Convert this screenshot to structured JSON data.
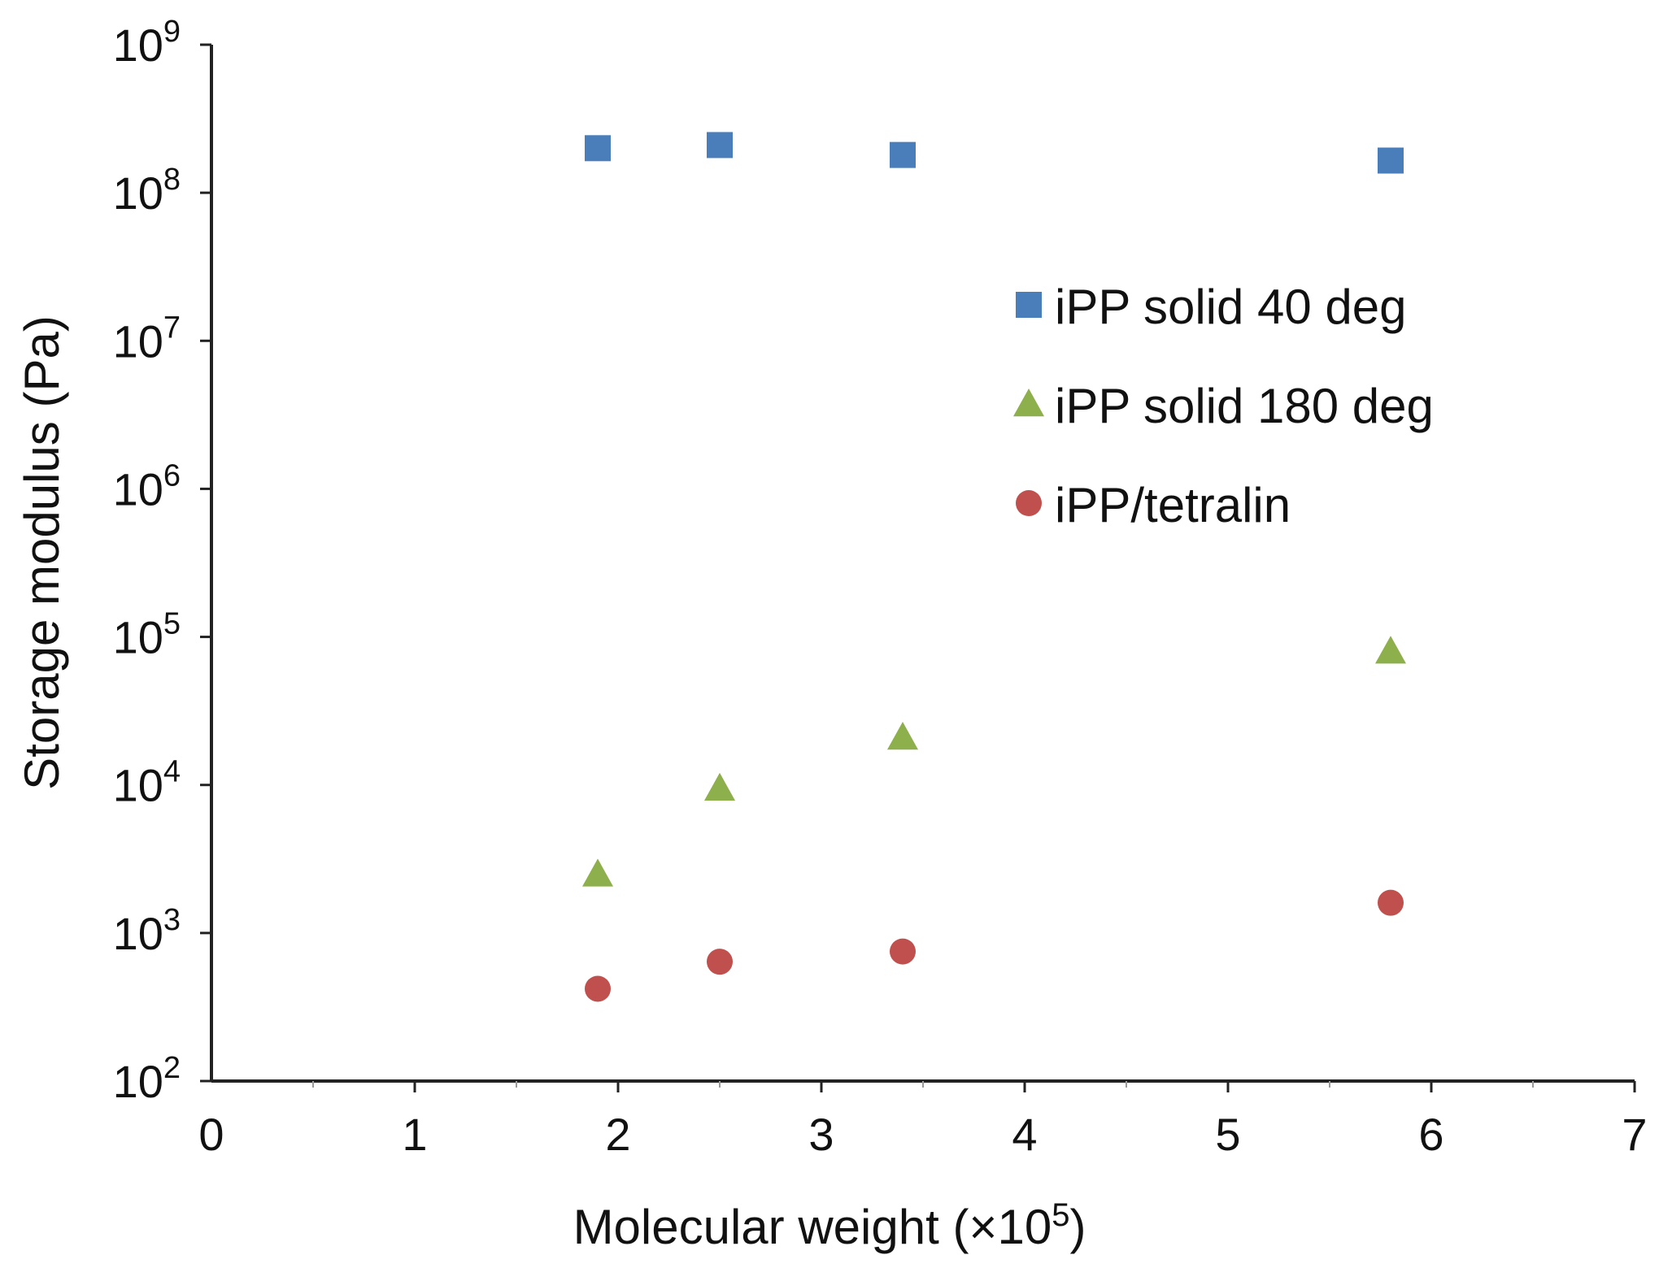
{
  "chart_data": {
    "type": "scatter",
    "title": "",
    "xlabel": "Molecular weight (×10",
    "xlabel_exponent": "5",
    "xlabel_suffix": ")",
    "ylabel": "Storage modulus (Pa)",
    "x_scale": "linear",
    "y_scale": "log",
    "xlim": [
      0,
      7
    ],
    "ylim": [
      100,
      1000000000
    ],
    "x_ticks": [
      0,
      1,
      2,
      3,
      4,
      5,
      6,
      7
    ],
    "y_tick_exponents": [
      2,
      3,
      4,
      5,
      6,
      7,
      8,
      9
    ],
    "y_tick_base": "10",
    "grid": false,
    "legend_position": "right-upper-inside",
    "series": [
      {
        "name": "iPP solid 40 deg",
        "marker": "square",
        "color": "#4A7EBB",
        "x": [
          1.9,
          2.5,
          3.4,
          5.8
        ],
        "y": [
          200000000,
          210000000,
          180000000,
          165000000
        ]
      },
      {
        "name": "iPP solid 180 deg",
        "marker": "triangle",
        "color": "#8DB04C",
        "x": [
          1.9,
          2.5,
          3.4,
          5.8
        ],
        "y": [
          2500,
          9500,
          21000,
          80000
        ]
      },
      {
        "name": "iPP/tetralin",
        "marker": "circle",
        "color": "#C0504D",
        "x": [
          1.9,
          2.5,
          3.4,
          5.8
        ],
        "y": [
          420,
          640,
          750,
          1600
        ]
      }
    ]
  }
}
